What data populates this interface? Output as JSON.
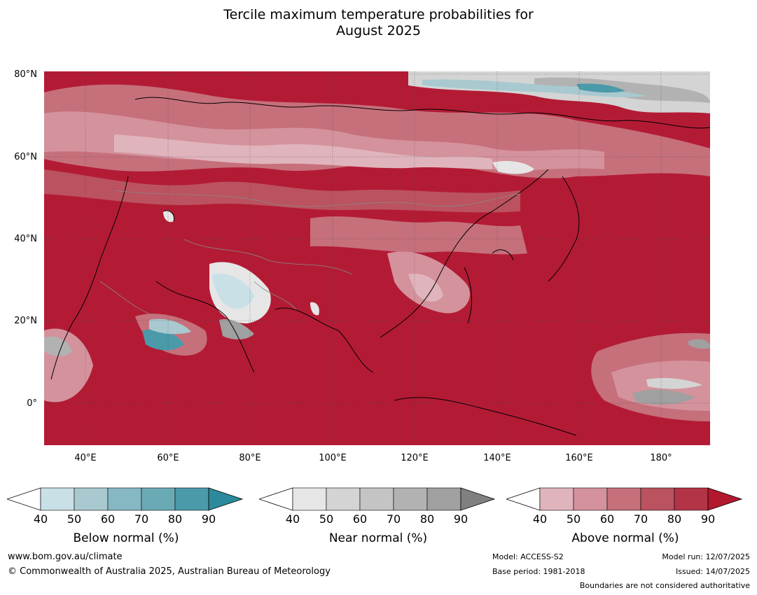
{
  "title": {
    "line1": "Tercile maximum temperature probabilities for",
    "line2": "August 2025"
  },
  "map": {
    "lat_labels": [
      "80°N",
      "60°N",
      "40°N",
      "20°N",
      "0°"
    ],
    "lon_labels": [
      "40°E",
      "60°E",
      "80°E",
      "100°E",
      "120°E",
      "140°E",
      "160°E",
      "180°"
    ],
    "background_color": "#b31b35"
  },
  "legend": {
    "below": {
      "title": "Below normal (%)",
      "ticks": [
        "40",
        "50",
        "60",
        "70",
        "80",
        "90"
      ],
      "colors": [
        "#c9e0e6",
        "#a8c9cf",
        "#86b8c3",
        "#6aaab5",
        "#4a9aa9",
        "#2b8a9c"
      ]
    },
    "near": {
      "title": "Near normal (%)",
      "ticks": [
        "40",
        "50",
        "60",
        "70",
        "80",
        "90"
      ],
      "colors": [
        "#e6e6e6",
        "#d4d4d4",
        "#c4c4c4",
        "#b2b2b2",
        "#a0a0a0",
        "#808080"
      ]
    },
    "above": {
      "title": "Above normal (%)",
      "ticks": [
        "40",
        "50",
        "60",
        "70",
        "80",
        "90"
      ],
      "colors": [
        "#e0b4bc",
        "#d4929c",
        "#c6707b",
        "#bb525f",
        "#b33447",
        "#b2182e"
      ]
    }
  },
  "footer": {
    "website": "www.bom.gov.au/climate",
    "copyright": "© Commonwealth of Australia 2025, Australian Bureau of Meteorology",
    "model": "Model: ACCESS-S2",
    "base_period": "Base period: 1981-2018",
    "model_run": "Model run: 12/07/2025",
    "issued": "Issued: 14/07/2025",
    "disclaimer": "Boundaries are not considered authoritative"
  }
}
